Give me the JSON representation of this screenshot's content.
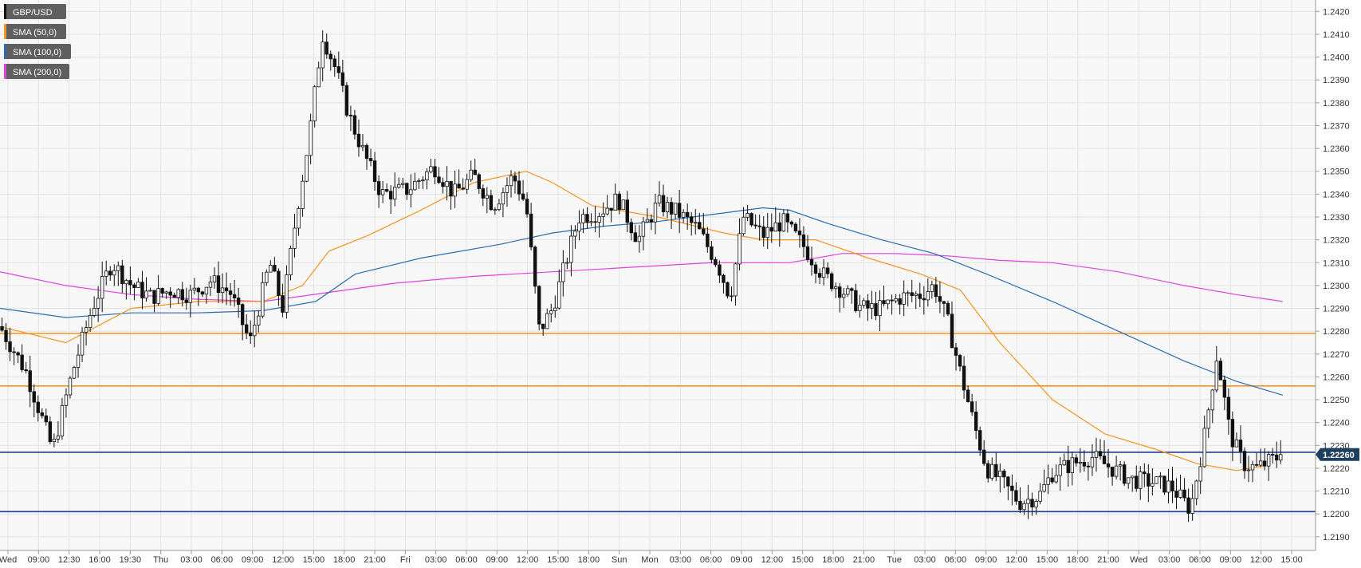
{
  "chart_data": {
    "type": "candlestick",
    "symbol": "GBP/USD",
    "legend": [
      {
        "label": "GBP/USD",
        "color": "#111111"
      },
      {
        "label": "SMA (50,0)",
        "color": "#f7931e"
      },
      {
        "label": "SMA (100,0)",
        "color": "#2b6cb0"
      },
      {
        "label": "SMA (200,0)",
        "color": "#e040e0"
      }
    ],
    "ylim": [
      1.2184,
      1.2425
    ],
    "y_ticks": [
      "1.2190",
      "1.2200",
      "1.2210",
      "1.2220",
      "1.2230",
      "1.2240",
      "1.2250",
      "1.2260",
      "1.2270",
      "1.2280",
      "1.2290",
      "1.2300",
      "1.2310",
      "1.2320",
      "1.2330",
      "1.2340",
      "1.2350",
      "1.2360",
      "1.2370",
      "1.2380",
      "1.2390",
      "1.2400",
      "1.2410",
      "1.2420"
    ],
    "x_ticks": [
      "Wed",
      "09:00",
      "12:30",
      "16:00",
      "19:30",
      "Thu",
      "03:00",
      "06:00",
      "09:00",
      "12:00",
      "15:00",
      "18:00",
      "21:00",
      "Fri",
      "03:00",
      "06:00",
      "09:00",
      "12:00",
      "15:00",
      "18:00",
      "Sun",
      "Mon",
      "03:00",
      "06:00",
      "09:00",
      "12:00",
      "15:00",
      "18:00",
      "21:00",
      "Tue",
      "03:00",
      "06:00",
      "09:00",
      "12:00",
      "15:00",
      "18:00",
      "21:00",
      "Wed",
      "03:00",
      "06:00",
      "09:00",
      "12:00",
      "15:00"
    ],
    "current_price": "1.22260",
    "current_price_value": 1.2226,
    "horizontal_levels": [
      {
        "value": 1.2279,
        "color": "#f7931e"
      },
      {
        "value": 1.2256,
        "color": "#f7931e"
      },
      {
        "value": 1.2227,
        "color": "#1f3f8f"
      },
      {
        "value": 1.2201,
        "color": "#1f3f8f"
      }
    ],
    "close_path": [
      [
        0,
        1.2282
      ],
      [
        0.02,
        1.2262
      ],
      [
        0.04,
        1.2228
      ],
      [
        0.055,
        1.2262
      ],
      [
        0.07,
        1.229
      ],
      [
        0.085,
        1.231
      ],
      [
        0.1,
        1.23
      ],
      [
        0.115,
        1.2295
      ],
      [
        0.13,
        1.2298
      ],
      [
        0.145,
        1.2296
      ],
      [
        0.16,
        1.2302
      ],
      [
        0.175,
        1.2297
      ],
      [
        0.19,
        1.2275
      ],
      [
        0.205,
        1.231
      ],
      [
        0.215,
        1.229
      ],
      [
        0.225,
        1.233
      ],
      [
        0.235,
        1.2365
      ],
      [
        0.245,
        1.241
      ],
      [
        0.255,
        1.2395
      ],
      [
        0.265,
        1.2375
      ],
      [
        0.275,
        1.236
      ],
      [
        0.29,
        1.234
      ],
      [
        0.31,
        1.2342
      ],
      [
        0.33,
        1.2352
      ],
      [
        0.345,
        1.234
      ],
      [
        0.36,
        1.2348
      ],
      [
        0.375,
        1.2335
      ],
      [
        0.39,
        1.2348
      ],
      [
        0.4,
        1.2335
      ],
      [
        0.41,
        1.228
      ],
      [
        0.42,
        1.229
      ],
      [
        0.43,
        1.231
      ],
      [
        0.44,
        1.233
      ],
      [
        0.455,
        1.2332
      ],
      [
        0.47,
        1.2338
      ],
      [
        0.485,
        1.232
      ],
      [
        0.5,
        1.2336
      ],
      [
        0.515,
        1.2332
      ],
      [
        0.53,
        1.2325
      ],
      [
        0.545,
        1.231
      ],
      [
        0.555,
        1.2295
      ],
      [
        0.565,
        1.233
      ],
      [
        0.58,
        1.2322
      ],
      [
        0.595,
        1.2328
      ],
      [
        0.61,
        1.2318
      ],
      [
        0.625,
        1.2305
      ],
      [
        0.64,
        1.2298
      ],
      [
        0.655,
        1.229
      ],
      [
        0.67,
        1.229
      ],
      [
        0.685,
        1.2295
      ],
      [
        0.7,
        1.2296
      ],
      [
        0.71,
        1.23
      ],
      [
        0.72,
        1.2285
      ],
      [
        0.73,
        1.2262
      ],
      [
        0.74,
        1.224
      ],
      [
        0.75,
        1.222
      ],
      [
        0.76,
        1.2215
      ],
      [
        0.775,
        1.2205
      ],
      [
        0.79,
        1.2208
      ],
      [
        0.8,
        1.2218
      ],
      [
        0.815,
        1.2222
      ],
      [
        0.83,
        1.2225
      ],
      [
        0.845,
        1.222
      ],
      [
        0.86,
        1.2215
      ],
      [
        0.875,
        1.2214
      ],
      [
        0.89,
        1.2212
      ],
      [
        0.905,
        1.2202
      ],
      [
        0.915,
        1.2232
      ],
      [
        0.925,
        1.227
      ],
      [
        0.935,
        1.2235
      ],
      [
        0.945,
        1.2222
      ],
      [
        0.955,
        1.222
      ],
      [
        0.965,
        1.2223
      ],
      [
        0.975,
        1.2226
      ]
    ],
    "sma50_path": [
      [
        0,
        1.2282
      ],
      [
        0.05,
        1.2275
      ],
      [
        0.1,
        1.229
      ],
      [
        0.15,
        1.2293
      ],
      [
        0.2,
        1.2293
      ],
      [
        0.23,
        1.23
      ],
      [
        0.25,
        1.2315
      ],
      [
        0.28,
        1.2322
      ],
      [
        0.32,
        1.2333
      ],
      [
        0.36,
        1.2345
      ],
      [
        0.4,
        1.235
      ],
      [
        0.42,
        1.2345
      ],
      [
        0.45,
        1.2335
      ],
      [
        0.5,
        1.233
      ],
      [
        0.55,
        1.2323
      ],
      [
        0.58,
        1.232
      ],
      [
        0.62,
        1.232
      ],
      [
        0.66,
        1.2312
      ],
      [
        0.7,
        1.2305
      ],
      [
        0.73,
        1.2298
      ],
      [
        0.76,
        1.2275
      ],
      [
        0.8,
        1.225
      ],
      [
        0.84,
        1.2235
      ],
      [
        0.88,
        1.2228
      ],
      [
        0.91,
        1.2222
      ],
      [
        0.94,
        1.2219
      ],
      [
        0.96,
        1.2221
      ]
    ],
    "sma100_path": [
      [
        0,
        1.229
      ],
      [
        0.05,
        1.2286
      ],
      [
        0.1,
        1.2288
      ],
      [
        0.15,
        1.2288
      ],
      [
        0.2,
        1.2289
      ],
      [
        0.24,
        1.2293
      ],
      [
        0.27,
        1.2305
      ],
      [
        0.32,
        1.2312
      ],
      [
        0.38,
        1.2318
      ],
      [
        0.42,
        1.2323
      ],
      [
        0.46,
        1.2326
      ],
      [
        0.5,
        1.2328
      ],
      [
        0.54,
        1.2331
      ],
      [
        0.58,
        1.2334
      ],
      [
        0.6,
        1.2333
      ],
      [
        0.63,
        1.2327
      ],
      [
        0.67,
        1.232
      ],
      [
        0.71,
        1.2314
      ],
      [
        0.75,
        1.2305
      ],
      [
        0.8,
        1.2293
      ],
      [
        0.85,
        1.228
      ],
      [
        0.9,
        1.2267
      ],
      [
        0.94,
        1.2258
      ],
      [
        0.975,
        1.2252
      ]
    ],
    "sma200_path": [
      [
        0,
        1.2306
      ],
      [
        0.05,
        1.23
      ],
      [
        0.1,
        1.2296
      ],
      [
        0.15,
        1.2294
      ],
      [
        0.2,
        1.2293
      ],
      [
        0.25,
        1.2297
      ],
      [
        0.3,
        1.2301
      ],
      [
        0.36,
        1.2304
      ],
      [
        0.42,
        1.2306
      ],
      [
        0.48,
        1.2308
      ],
      [
        0.54,
        1.231
      ],
      [
        0.6,
        1.231
      ],
      [
        0.64,
        1.2314
      ],
      [
        0.68,
        1.2314
      ],
      [
        0.72,
        1.2313
      ],
      [
        0.76,
        1.2311
      ],
      [
        0.8,
        1.231
      ],
      [
        0.85,
        1.2306
      ],
      [
        0.9,
        1.23
      ],
      [
        0.94,
        1.2296
      ],
      [
        0.975,
        1.2293
      ]
    ],
    "grid": true,
    "legend_position": "top-left",
    "axis_position": "right"
  }
}
